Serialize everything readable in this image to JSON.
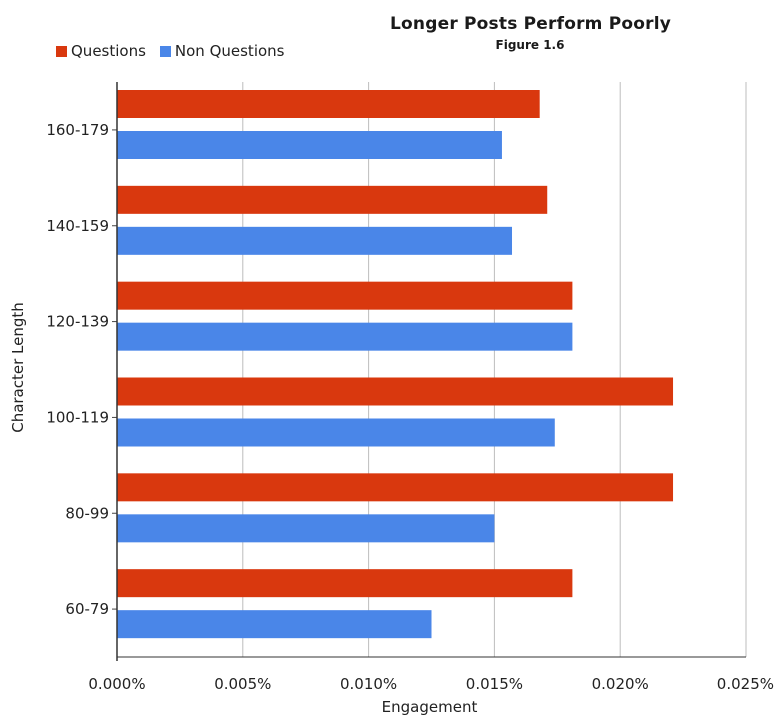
{
  "chart_data": {
    "type": "bar",
    "orientation": "horizontal",
    "title": "Longer Posts Perform Poorly",
    "subtitle": "Figure 1.6",
    "xlabel": "Engagement",
    "ylabel": "Character Length",
    "categories": [
      "160-179",
      "140-159",
      "120-139",
      "100-119",
      "80-99",
      "60-79"
    ],
    "series": [
      {
        "name": "Questions",
        "color": "#d9380e",
        "values": [
          0.0168,
          0.0171,
          0.0181,
          0.0221,
          0.0221,
          0.0181
        ]
      },
      {
        "name": "Non Questions",
        "color": "#4a86e8",
        "values": [
          0.0153,
          0.0157,
          0.0181,
          0.0174,
          0.015,
          0.0125
        ]
      }
    ],
    "xlim": [
      0,
      0.025
    ],
    "xticks": [
      "0.000%",
      "0.005%",
      "0.010%",
      "0.015%",
      "0.020%",
      "0.025%"
    ],
    "grid": true,
    "legend_position": "top-left"
  }
}
